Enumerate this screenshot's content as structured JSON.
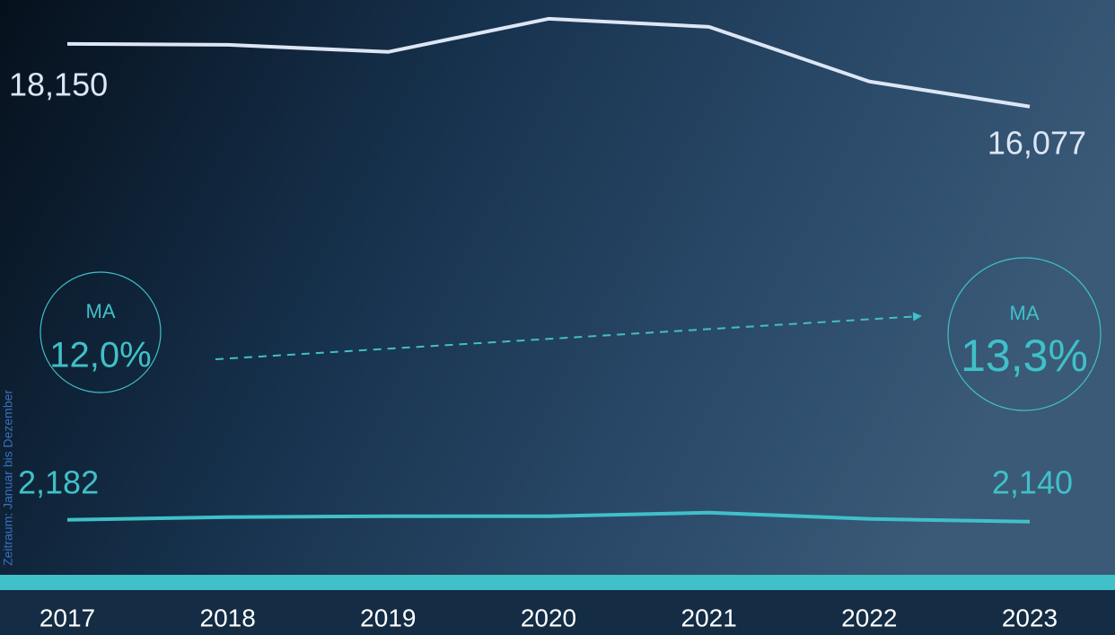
{
  "chart_data": {
    "type": "line",
    "categories": [
      "2017",
      "2018",
      "2019",
      "2020",
      "2021",
      "2022",
      "2023"
    ],
    "side_note": "Zeitraum: Januar bis Dezember",
    "series": [
      {
        "color": "#dde6f5",
        "values": [
          18150,
          18120,
          17884,
          18979,
          18713,
          16907,
          16077
        ],
        "value_labels": [
          "18,150",
          null,
          null,
          null,
          null,
          null,
          "16,077"
        ],
        "ylim": [
          600,
          19600
        ]
      },
      {
        "color": "#40c0c8",
        "values": [
          2182,
          2245,
          2266,
          2266,
          2350,
          2203,
          2140
        ],
        "value_labels": [
          "2,182",
          null,
          null,
          null,
          null,
          null,
          "2,140"
        ],
        "ylim": [
          900,
          14300
        ]
      }
    ],
    "annotations": [
      {
        "label": "MA",
        "value": 12.0,
        "value_label": "12,0%"
      },
      {
        "label": "MA",
        "value": 13.3,
        "value_label": "13,3%"
      }
    ]
  }
}
